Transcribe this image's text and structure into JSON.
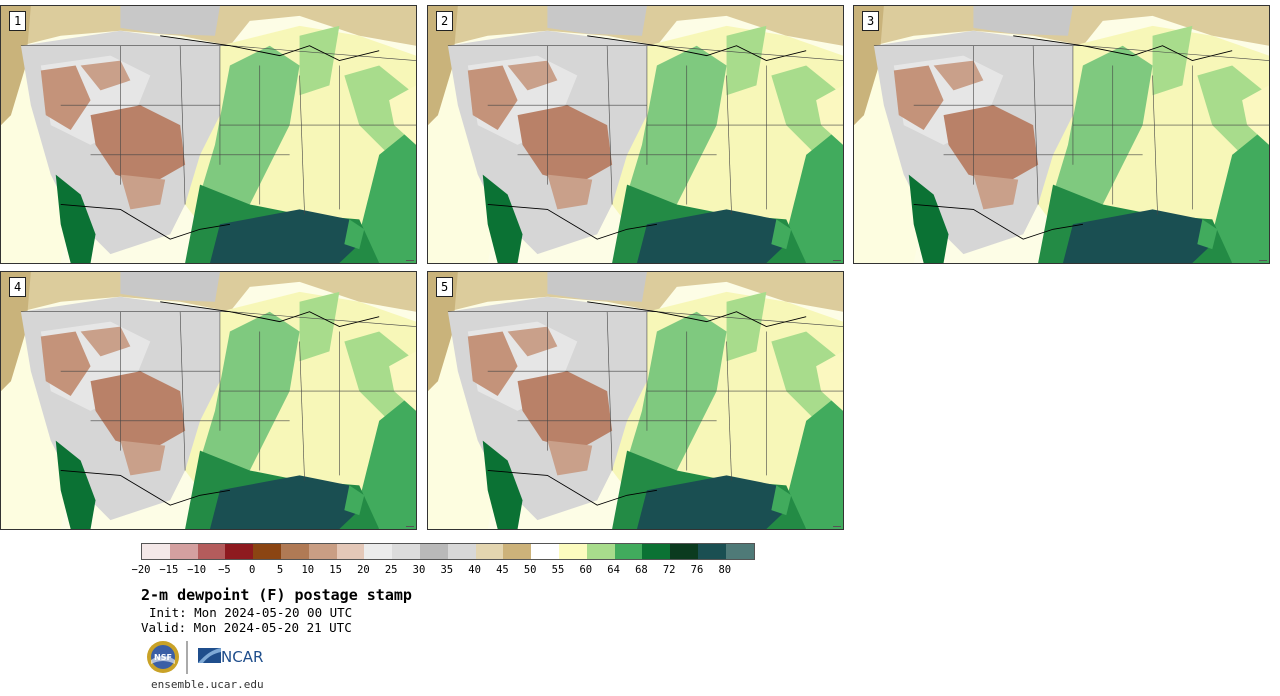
{
  "panels": [
    {
      "label": "1"
    },
    {
      "label": "2"
    },
    {
      "label": "3"
    },
    {
      "label": "4"
    },
    {
      "label": "5"
    }
  ],
  "colorbar": {
    "colors": [
      "#f4e8e8",
      "#d4a0a0",
      "#b45c5c",
      "#8e1a1f",
      "#8b4513",
      "#b07a55",
      "#c99e84",
      "#e4c8b8",
      "#ececec",
      "#dcdcdc",
      "#b9b9b9",
      "#d8d8d8",
      "#e3d5b0",
      "#ccb27a",
      "#ffffff",
      "#fcfbbf",
      "#a8dc8c",
      "#41ab5d",
      "#0b7234",
      "#0b3b1f",
      "#1a4f52",
      "#4f7a78"
    ],
    "ticks": [
      "−20",
      "−15",
      "−10",
      "−5",
      "0",
      "5",
      "10",
      "15",
      "20",
      "25",
      "30",
      "35",
      "40",
      "45",
      "50",
      "55",
      "60",
      "64",
      "68",
      "72",
      "76",
      "80"
    ]
  },
  "title": "2-m dewpoint (F) postage stamp",
  "init": "Init: Mon 2024-05-20 00 UTC",
  "valid": "Valid: Mon 2024-05-20 21 UTC",
  "logos": {
    "nsf": "NSF",
    "ncar": "NCAR"
  },
  "site": "ensemble.ucar.edu"
}
